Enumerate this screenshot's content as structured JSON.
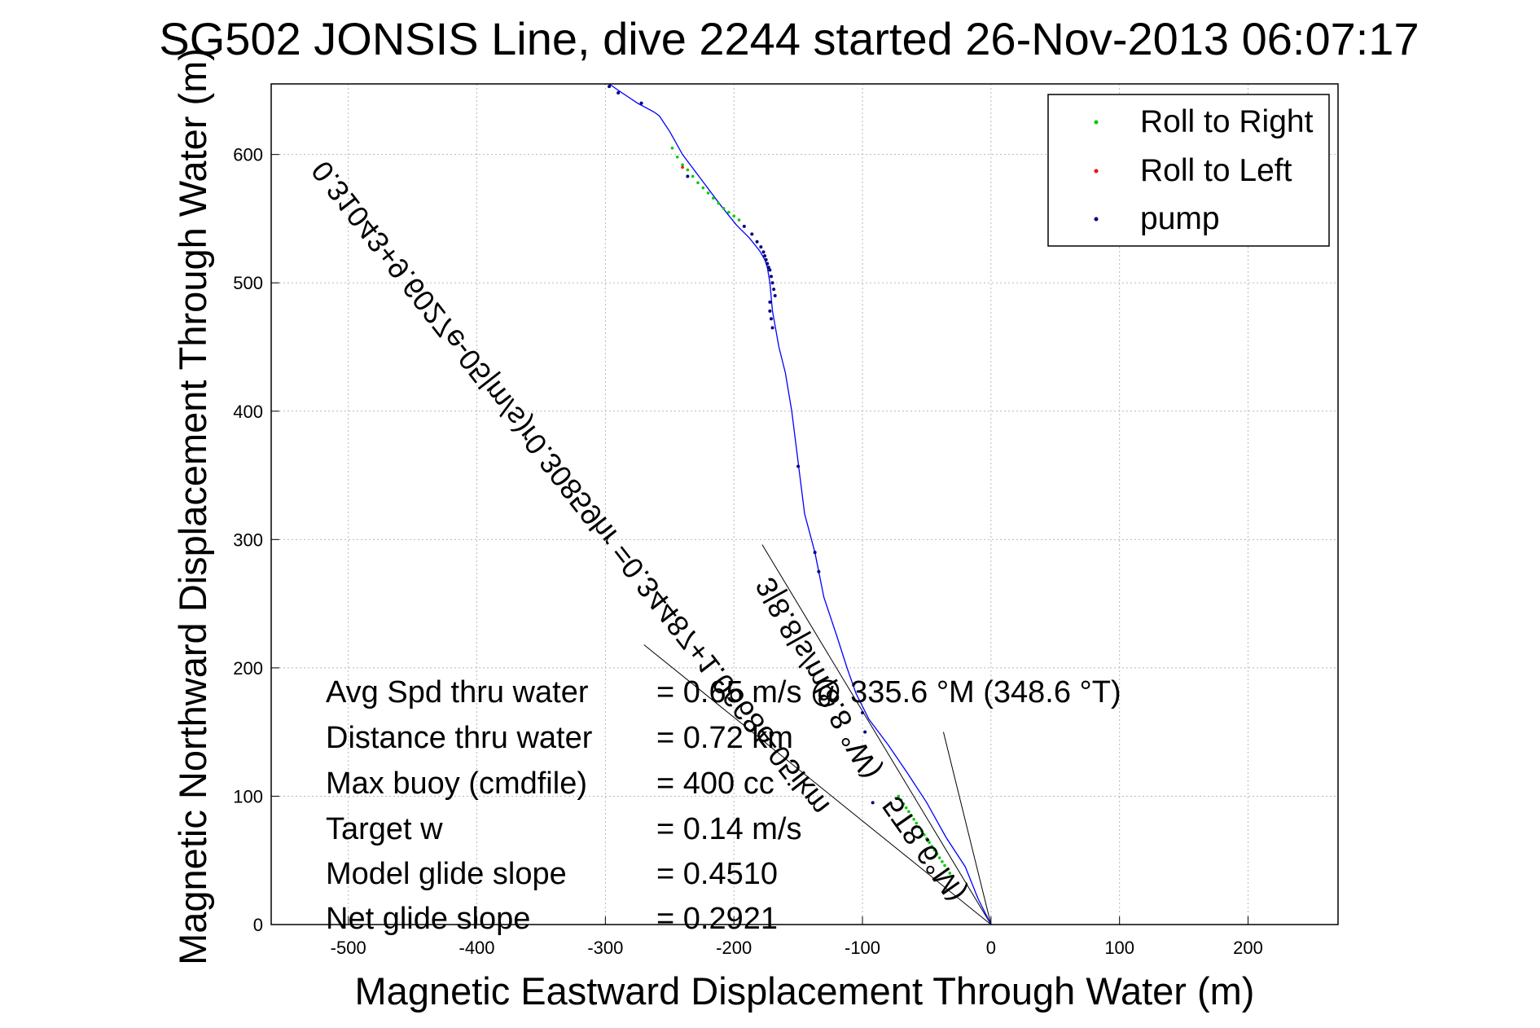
{
  "chart_data": {
    "type": "line",
    "title": "SG502 JONSIS Line, dive 2244 started 26-Nov-2013 06:07:17",
    "xlabel": "Magnetic Eastward Displacement Through Water (m)",
    "ylabel": "Magnetic Northward Displacement Through Water (m)",
    "xlim": [
      -560,
      270
    ],
    "ylim": [
      0,
      655
    ],
    "xticks": [
      -500,
      -400,
      -300,
      -200,
      -100,
      0,
      100,
      200
    ],
    "yticks": [
      0,
      100,
      200,
      300,
      400,
      500,
      600
    ],
    "grid": true,
    "legend": {
      "placement": "top-right",
      "entries": [
        {
          "label": "Roll to Right",
          "color": "#00cc00"
        },
        {
          "label": "Roll to Left",
          "color": "#ff0000"
        },
        {
          "label": "pump",
          "color": "#000080"
        }
      ]
    },
    "track": {
      "color": "#0000ff",
      "x": [
        0,
        -10,
        -20,
        -35,
        -50,
        -65,
        -80,
        -95,
        -105,
        -112,
        -120,
        -130,
        -137,
        -145,
        -150,
        -155,
        -160,
        -165,
        -170,
        -172,
        -174,
        -176,
        -180,
        -188,
        -198,
        -210,
        -225,
        -240,
        -250,
        -258,
        -262,
        -275,
        -290,
        -297
      ],
      "y": [
        0,
        20,
        45,
        68,
        95,
        118,
        140,
        160,
        180,
        200,
        225,
        255,
        290,
        320,
        360,
        400,
        430,
        450,
        478,
        500,
        512,
        518,
        525,
        535,
        545,
        560,
        580,
        600,
        618,
        630,
        633,
        640,
        650,
        655
      ]
    },
    "roll_right": {
      "color": "#00cc00",
      "x": [
        -248,
        -244,
        -240,
        -236,
        -232,
        -228,
        -224,
        -220,
        -216,
        -212,
        -208,
        -204,
        -200,
        -196,
        -72,
        -70,
        -68,
        -66,
        -64,
        -62,
        -60,
        -58,
        -56,
        -54,
        -52,
        -50,
        -48,
        -46,
        -44,
        -42,
        -40,
        -38,
        -36,
        -34,
        -32,
        -30
      ],
      "y": [
        605,
        598,
        592,
        588,
        583,
        578,
        574,
        570,
        566,
        562,
        558,
        555,
        552,
        549,
        100,
        97,
        94,
        91,
        88,
        85,
        82,
        79,
        76,
        73,
        70,
        67,
        64,
        61,
        58,
        55,
        52,
        49,
        46,
        43,
        40,
        37
      ]
    },
    "roll_left": {
      "color": "#ff0000",
      "x": [
        -240
      ],
      "y": [
        590
      ]
    },
    "pump": {
      "color": "#000080",
      "x": [
        -297,
        -290,
        -272,
        -236,
        -192,
        -186,
        -182,
        -179,
        -177,
        -176,
        -175,
        -174,
        -173,
        -172,
        -171,
        -170,
        -169,
        -168,
        -172,
        -172,
        -171,
        -170,
        -150,
        -137,
        -134,
        -100,
        -98,
        -92
      ],
      "y": [
        653,
        648,
        640,
        583,
        544,
        538,
        532,
        528,
        524,
        521,
        518,
        515,
        512,
        510,
        505,
        500,
        495,
        490,
        485,
        478,
        472,
        465,
        357,
        290,
        275,
        165,
        150,
        95
      ]
    },
    "reference_lines": [
      {
        "x": [
          0,
          -270
        ],
        "y": [
          0,
          218
        ],
        "color": "#000000"
      },
      {
        "x": [
          0,
          -178
        ],
        "y": [
          0,
          296
        ],
        "color": "#000000"
      },
      {
        "x": [
          0,
          -37
        ],
        "y": [
          0,
          150
        ],
        "color": "#000000"
      }
    ],
    "annotations": {
      "rotated_formula": "0.31043+9.6027e-05|m/s)r0.30859hr =0.34487+1.0668e-05ikm",
      "rotated_heading": "3|8.8|s/m|8.8 °W)",
      "rotated_speed": "5T8.6°M)"
    },
    "stats": [
      {
        "label": "Avg Spd thru water",
        "value": "=  0.65 m/s @  335.6 °M (348.6 °T)"
      },
      {
        "label": "Distance thru water",
        "value": "=  0.72 km"
      },
      {
        "label": "Max buoy (cmdfile)",
        "value": "= 400 cc"
      },
      {
        "label": "Target w",
        "value": "= 0.14 m/s"
      },
      {
        "label": "Model glide slope",
        "value": "= 0.4510"
      },
      {
        "label": "Net glide slope",
        "value": "= 0.2921"
      }
    ]
  }
}
